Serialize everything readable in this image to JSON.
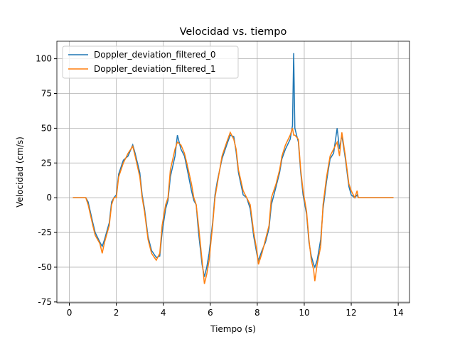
{
  "chart_data": {
    "type": "line",
    "title": "Velocidad vs. tiempo",
    "xlabel": "Tiempo (s)",
    "ylabel": "Velocidad (cm/s)",
    "x": [
      0.15,
      0.7,
      0.8,
      1.0,
      1.1,
      1.3,
      1.4,
      1.5,
      1.7,
      1.8,
      1.9,
      2.0,
      2.1,
      2.3,
      2.5,
      2.7,
      2.8,
      3.0,
      3.1,
      3.2,
      3.35,
      3.5,
      3.7,
      3.85,
      3.95,
      4.1,
      4.2,
      4.3,
      4.5,
      4.6,
      4.75,
      4.9,
      5.0,
      5.2,
      5.3,
      5.4,
      5.5,
      5.65,
      5.75,
      5.85,
      5.95,
      6.1,
      6.2,
      6.3,
      6.5,
      6.7,
      6.85,
      7.0,
      7.1,
      7.2,
      7.4,
      7.55,
      7.7,
      7.85,
      8.0,
      8.05,
      8.2,
      8.35,
      8.5,
      8.6,
      8.8,
      8.95,
      9.05,
      9.2,
      9.4,
      9.5,
      9.55,
      9.6,
      9.75,
      9.85,
      9.95,
      10.1,
      10.2,
      10.3,
      10.4,
      10.45,
      10.55,
      10.7,
      10.8,
      10.95,
      11.1,
      11.25,
      11.4,
      11.5,
      11.6,
      11.75,
      11.9,
      12.0,
      12.15,
      12.25,
      12.3,
      13.8
    ],
    "series": [
      {
        "name": "Doppler_deviation_filtered_0",
        "color": "#1f77b4",
        "values": [
          0,
          0,
          -3,
          -18,
          -25,
          -32,
          -35,
          -30,
          -18,
          -3,
          0,
          2,
          17,
          27,
          30,
          38,
          32,
          18,
          2,
          -8,
          -28,
          -38,
          -43,
          -42,
          -25,
          -8,
          -2,
          15,
          30,
          45,
          35,
          30,
          22,
          5,
          -2,
          -5,
          -25,
          -48,
          -57,
          -50,
          -40,
          -18,
          2,
          12,
          28,
          38,
          45,
          44,
          33,
          18,
          2,
          0,
          -8,
          -28,
          -42,
          -45,
          -38,
          -32,
          -22,
          -5,
          8,
          18,
          28,
          35,
          42,
          52,
          104,
          50,
          40,
          18,
          2,
          -12,
          -32,
          -42,
          -48,
          -50,
          -45,
          -30,
          -8,
          12,
          28,
          32,
          50,
          35,
          45,
          28,
          8,
          2,
          0,
          2,
          0,
          0
        ]
      },
      {
        "name": "Doppler_deviation_filtered_1",
        "color": "#ff7f0e",
        "values": [
          0,
          0,
          -5,
          -20,
          -27,
          -33,
          -40,
          -32,
          -20,
          -5,
          0,
          0,
          15,
          25,
          32,
          37,
          30,
          15,
          0,
          -10,
          -30,
          -40,
          -45,
          -40,
          -20,
          -5,
          0,
          20,
          35,
          40,
          38,
          32,
          25,
          10,
          0,
          -5,
          -20,
          -45,
          -62,
          -55,
          -45,
          -20,
          0,
          10,
          30,
          40,
          47,
          42,
          35,
          20,
          5,
          0,
          -5,
          -25,
          -40,
          -48,
          -40,
          -30,
          -20,
          0,
          10,
          20,
          30,
          38,
          45,
          50,
          45,
          45,
          42,
          20,
          5,
          -10,
          -30,
          -45,
          -52,
          -60,
          -48,
          -35,
          -5,
          15,
          30,
          35,
          40,
          30,
          47,
          30,
          10,
          5,
          0,
          5,
          0,
          0
        ]
      }
    ],
    "xlim": [
      -0.53,
      14.48
    ],
    "ylim": [
      -75.6,
      112.6
    ],
    "xticks": [
      0,
      2,
      4,
      6,
      8,
      10,
      12,
      14
    ],
    "yticks": [
      -75,
      -50,
      -25,
      0,
      25,
      50,
      75,
      100
    ],
    "grid": true,
    "legend": "upper left"
  }
}
